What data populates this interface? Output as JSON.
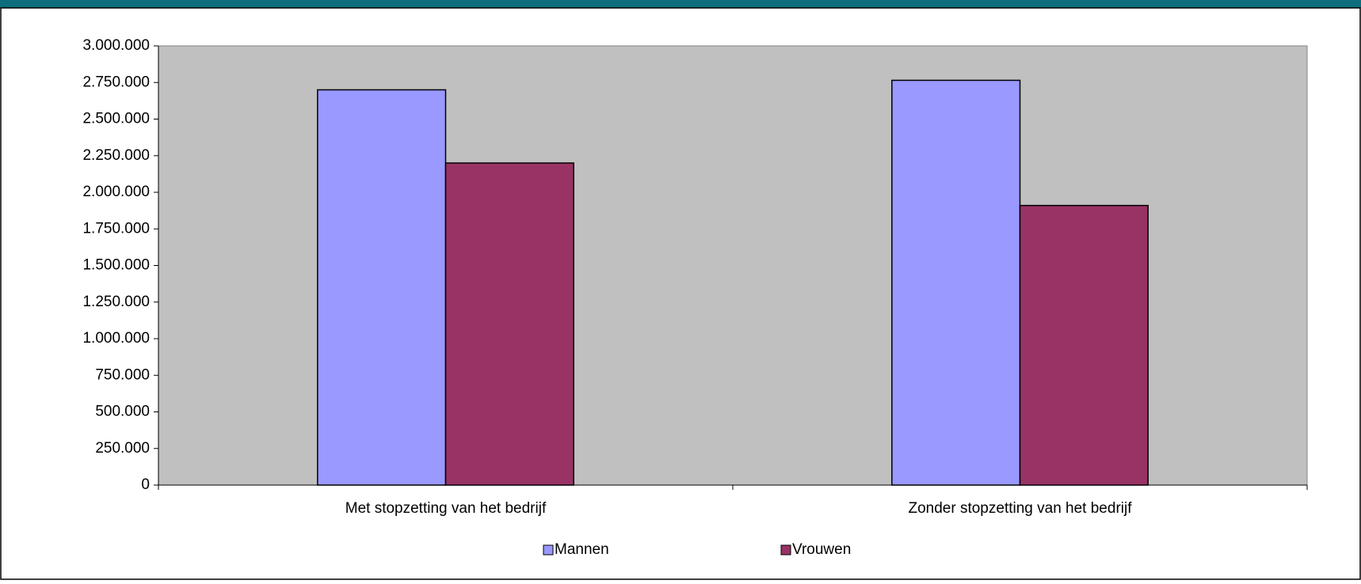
{
  "chart_data": {
    "type": "bar",
    "categories": [
      "Met stopzetting van het bedrijf",
      "Zonder stopzetting van het bedrijf"
    ],
    "series": [
      {
        "name": "Mannen",
        "color": "#9999ff",
        "values": [
          2700000,
          2765000
        ]
      },
      {
        "name": "Vrouwen",
        "color": "#993366",
        "values": [
          2200000,
          1910000
        ]
      }
    ],
    "ylim": [
      0,
      3000000
    ],
    "yticks": [
      0,
      {
        "value": 250000,
        "label": "250.000"
      },
      {
        "value": 500000,
        "label": "500.000"
      },
      {
        "value": 750000,
        "label": "750.000"
      },
      {
        "value": 1000000,
        "label": "1.000.000"
      },
      {
        "value": 1250000,
        "label": "1.250.000"
      },
      {
        "value": 1500000,
        "label": "1.500.000"
      },
      {
        "value": 1750000,
        "label": "1.750.000"
      },
      {
        "value": 2000000,
        "label": "2.000.000"
      },
      {
        "value": 2250000,
        "label": "2.250.000"
      },
      {
        "value": 2500000,
        "label": "2.500.000"
      },
      {
        "value": 2750000,
        "label": "2.750.000"
      },
      {
        "value": 3000000,
        "label": "3.000.000"
      }
    ],
    "plot_background": "#c0c0c0",
    "legend": "bottom"
  }
}
